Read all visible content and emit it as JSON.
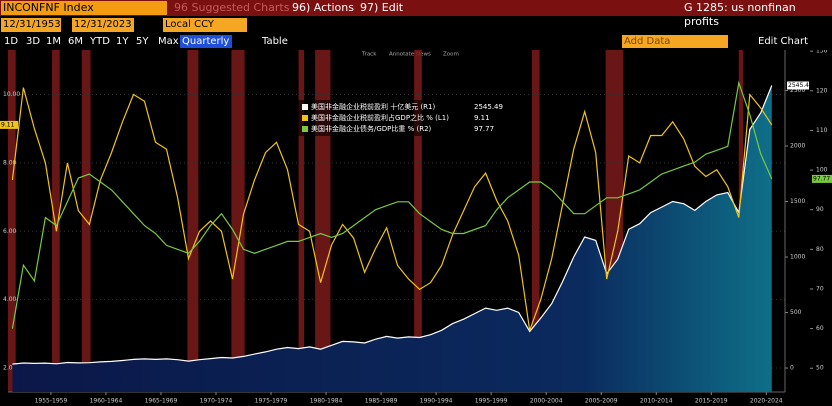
{
  "header": {
    "ticker": "INCONFNF Index",
    "suggested": "96 Suggested Charts",
    "actions": "96) Actions",
    "edit": "97) Edit",
    "title": "G 1285: us nonfinan profits"
  },
  "controls": {
    "start_date": "12/31/1953",
    "end_date": "12/31/2023",
    "currency": "Local CCY",
    "ranges": [
      "1D",
      "3D",
      "1M",
      "6M",
      "YTD",
      "1Y",
      "5Y",
      "Max"
    ],
    "frequency": "Quarterly",
    "table": "Table",
    "add_data": "Add Data",
    "edit_chart": "Edit Chart",
    "tools": [
      "Track",
      "Annotate",
      "News",
      "Zoom"
    ]
  },
  "chart_data": {
    "type": "line",
    "x": [
      1954,
      1955,
      1956,
      1957,
      1958,
      1959,
      1960,
      1961,
      1962,
      1963,
      1964,
      1965,
      1966,
      1967,
      1968,
      1969,
      1970,
      1971,
      1972,
      1973,
      1974,
      1975,
      1976,
      1977,
      1978,
      1979,
      1980,
      1981,
      1982,
      1983,
      1984,
      1985,
      1986,
      1987,
      1988,
      1989,
      1990,
      1991,
      1992,
      1993,
      1994,
      1995,
      1996,
      1997,
      1998,
      1999,
      2000,
      2001,
      2002,
      2003,
      2004,
      2005,
      2006,
      2007,
      2008,
      2009,
      2010,
      2011,
      2012,
      2013,
      2014,
      2015,
      2016,
      2017,
      2018,
      2019,
      2020,
      2021,
      2022,
      2023
    ],
    "xlim": [
      1953.6,
      2024.2
    ],
    "xticks": [
      {
        "value": 1957.5,
        "label": "1955-1959"
      },
      {
        "value": 1962.5,
        "label": "1960-1964"
      },
      {
        "value": 1967.5,
        "label": "1965-1969"
      },
      {
        "value": 1972.5,
        "label": "1970-1974"
      },
      {
        "value": 1977.5,
        "label": "1975-1979"
      },
      {
        "value": 1982.5,
        "label": "1980-1984"
      },
      {
        "value": 1987.5,
        "label": "1985-1989"
      },
      {
        "value": 1992.5,
        "label": "1990-1994"
      },
      {
        "value": 1997.5,
        "label": "1995-1999"
      },
      {
        "value": 2002.5,
        "label": "2000-2004"
      },
      {
        "value": 2007.5,
        "label": "2005-2009"
      },
      {
        "value": 2012.5,
        "label": "2010-2014"
      },
      {
        "value": 2017.5,
        "label": "2015-2019"
      },
      {
        "value": 2022.5,
        "label": "2020-2024"
      }
    ],
    "ylim": [
      1.3,
      11.3
    ],
    "yticks": [
      {
        "value": 2,
        "label": "2.00"
      },
      {
        "value": 4,
        "label": "4.00"
      },
      {
        "value": 6,
        "label": "6.00"
      },
      {
        "value": 8,
        "label": "8.00"
      },
      {
        "value": 10,
        "label": "10.00"
      }
    ],
    "y2lim": [
      -216,
      2865
    ],
    "y2ticks": [
      0,
      500,
      1000,
      1500,
      2000,
      2500
    ],
    "y3lim": [
      44,
      130.3
    ],
    "y3ticks": [
      50,
      60,
      70,
      80,
      90,
      100,
      110,
      120,
      130
    ],
    "recessions": [
      [
        1953.6,
        1954.3
      ],
      [
        1957.6,
        1958.3
      ],
      [
        1960.3,
        1961.1
      ],
      [
        1969.9,
        1970.9
      ],
      [
        1973.9,
        1975.1
      ],
      [
        1980.0,
        1980.5
      ],
      [
        1981.5,
        1982.9
      ],
      [
        1990.5,
        1991.2
      ],
      [
        2001.2,
        2001.9
      ],
      [
        2007.9,
        2009.5
      ],
      [
        2020.0,
        2020.4
      ]
    ],
    "recession_color": "#7a1a1a",
    "series": [
      {
        "name": "美国非金融企业税前盈利 十亿美元 (R1)",
        "color": "#ffffff",
        "axis": "y2",
        "area": true,
        "values": [
          35,
          45,
          42,
          44,
          38,
          50,
          46,
          48,
          55,
          60,
          68,
          78,
          82,
          78,
          82,
          75,
          62,
          75,
          85,
          95,
          90,
          105,
          125,
          145,
          170,
          185,
          175,
          190,
          170,
          205,
          240,
          235,
          225,
          260,
          285,
          270,
          280,
          275,
          300,
          340,
          400,
          440,
          490,
          540,
          520,
          540,
          500,
          330,
          450,
          580,
          780,
          1000,
          1180,
          1150,
          850,
          980,
          1250,
          1300,
          1400,
          1450,
          1500,
          1480,
          1420,
          1500,
          1560,
          1580,
          1400,
          2150,
          2300,
          2545.49
        ]
      },
      {
        "name": "美国非金融企业税前盈利占GDP之比 % (L1)",
        "color": "#f0c419",
        "axis": "y",
        "values": [
          7.5,
          10.2,
          9.0,
          8.0,
          6.0,
          8.0,
          6.6,
          6.2,
          7.5,
          8.3,
          9.2,
          10.0,
          9.8,
          8.6,
          8.4,
          7.0,
          5.2,
          6.0,
          6.3,
          6.0,
          4.6,
          6.5,
          7.5,
          8.3,
          8.6,
          7.8,
          6.2,
          6.0,
          4.5,
          5.6,
          6.2,
          5.8,
          4.8,
          5.5,
          6.1,
          5.0,
          4.6,
          4.3,
          4.5,
          5.0,
          5.9,
          6.6,
          7.3,
          7.7,
          6.9,
          6.3,
          5.3,
          3.1,
          4.0,
          5.2,
          6.8,
          8.4,
          9.5,
          8.3,
          4.6,
          6.0,
          8.2,
          8.0,
          8.8,
          8.8,
          9.2,
          8.7,
          7.9,
          7.6,
          7.8,
          7.3,
          6.4,
          10.0,
          9.6,
          9.11
        ]
      },
      {
        "name": "美国非金融企业债务/GDP比重 % (R2)",
        "color": "#7ac943",
        "axis": "y3",
        "values": [
          60,
          76,
          72,
          88,
          86,
          92,
          98,
          99,
          97,
          95,
          92,
          89,
          86,
          84,
          81,
          80,
          79,
          82,
          86,
          89,
          85,
          80,
          79,
          80,
          81,
          82,
          82,
          83,
          84,
          83,
          84,
          86,
          88,
          90,
          91,
          92,
          92,
          89,
          87,
          85,
          84,
          84,
          85,
          86,
          90,
          93,
          95,
          97,
          97,
          95,
          92,
          89,
          89,
          91,
          93,
          93,
          94,
          95,
          97,
          99,
          100,
          101,
          102,
          104,
          105,
          106,
          122,
          114,
          104,
          97.77
        ]
      }
    ]
  }
}
